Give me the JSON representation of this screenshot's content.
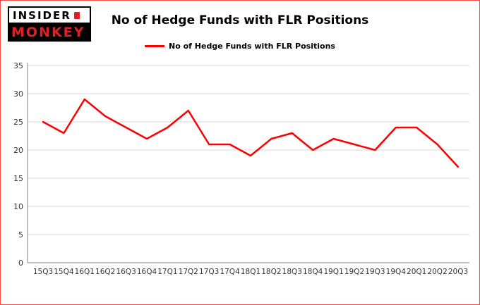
{
  "header": {
    "logo_line1": "INSIDER",
    "logo_line2": "MONKEY",
    "title": "No of Hedge Funds with FLR Positions"
  },
  "legend": {
    "label": "No of Hedge Funds with FLR Positions",
    "color": "#fe0000"
  },
  "colors": {
    "line": "#fe0000",
    "grid": "#d9d9d9",
    "axis": "#808080",
    "tick_text": "#333333",
    "border": "#fb4a4a"
  },
  "chart_data": {
    "type": "line",
    "title": "No of Hedge Funds with FLR Positions",
    "xlabel": "",
    "ylabel": "",
    "categories": [
      "15Q3",
      "15Q4",
      "16Q1",
      "16Q2",
      "16Q3",
      "16Q4",
      "17Q1",
      "17Q2",
      "17Q3",
      "17Q4",
      "18Q1",
      "18Q2",
      "18Q3",
      "18Q4",
      "19Q1",
      "19Q2",
      "19Q3",
      "19Q4",
      "20Q1",
      "20Q2",
      "20Q3"
    ],
    "values": [
      25,
      23,
      29,
      26,
      24,
      22,
      24,
      27,
      21,
      21,
      19,
      22,
      23,
      20,
      22,
      21,
      20,
      24,
      24,
      21,
      17
    ],
    "ylim": [
      0,
      35
    ],
    "yticks": [
      0,
      5,
      10,
      15,
      20,
      25,
      30,
      35
    ],
    "grid": true,
    "legend_position": "top",
    "line_color": "#fe0000"
  }
}
